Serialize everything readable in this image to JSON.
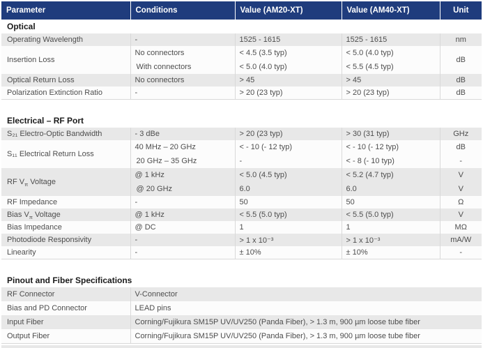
{
  "colors": {
    "header_bg": "#1f3c7d",
    "header_text": "#ffffff",
    "row_alt_bg": "#e8e8e8",
    "row_plain_bg": "#fcfcfc",
    "border": "#d9d9d9",
    "text": "#4d4d4d",
    "section_title_text": "#1a1a1a"
  },
  "table": {
    "columns": [
      {
        "label": "Parameter"
      },
      {
        "label": "Conditions"
      },
      {
        "label": "Value (AM20-XT)"
      },
      {
        "label": "Value (AM40-XT)"
      },
      {
        "label": "Unit"
      }
    ],
    "sections": [
      {
        "title": "Optical",
        "rows": [
          {
            "parameter": "Operating Wavelength",
            "lines": [
              {
                "condition": "-",
                "am20": "1525 - 1615",
                "am40": "1525 - 1615",
                "unit": "nm"
              }
            ]
          },
          {
            "parameter": "Insertion Loss",
            "unit": "dB",
            "lines": [
              {
                "condition": "No connectors",
                "am20": "< 4.5 (3.5 typ)",
                "am40": "< 5.0 (4.0 typ)"
              },
              {
                "condition": "With connectors",
                "am20": "< 5.0 (4.0 typ)",
                "am40": "< 5.5 (4.5 typ)"
              }
            ]
          },
          {
            "parameter": "Optical Return Loss",
            "lines": [
              {
                "condition": "No connectors",
                "am20": "> 45",
                "am40": "> 45",
                "unit": "dB"
              }
            ]
          },
          {
            "parameter": "Polarization Extinction Ratio",
            "lines": [
              {
                "condition": "-",
                "am20": "> 20 (23 typ)",
                "am40": "> 20 (23 typ)",
                "unit": "dB"
              }
            ]
          }
        ]
      },
      {
        "title": "Electrical – RF Port",
        "rows": [
          {
            "parameter": "S₂₁ Electro-Optic Bandwidth",
            "lines": [
              {
                "condition": "- 3 dBe",
                "am20": "> 20 (23 typ)",
                "am40": "> 30 (31 typ)",
                "unit": "GHz"
              }
            ]
          },
          {
            "parameter": "S₁₁ Electrical Return Loss",
            "lines": [
              {
                "condition": "40 MHz – 20 GHz",
                "am20": "< - 10 (- 12 typ)",
                "am40": "< - 10 (- 12 typ)",
                "unit": "dB"
              },
              {
                "condition": "20 GHz – 35 GHz",
                "am20": "-",
                "am40": "< - 8 (- 10 typ)",
                "unit": "-"
              }
            ]
          },
          {
            "parameter": "RF V~π~ Voltage",
            "lines": [
              {
                "condition": "@ 1 kHz",
                "am20": "< 5.0 (4.5 typ)",
                "am40": "< 5.2 (4.7 typ)",
                "unit": "V"
              },
              {
                "condition": "@ 20 GHz",
                "am20": "6.0",
                "am40": "6.0",
                "unit": "V"
              }
            ]
          },
          {
            "parameter": "RF Impedance",
            "lines": [
              {
                "condition": "-",
                "am20": "50",
                "am40": "50",
                "unit": "Ω"
              }
            ]
          },
          {
            "parameter": "Bias V~π~ Voltage",
            "lines": [
              {
                "condition": "@ 1 kHz",
                "am20": "< 5.5 (5.0 typ)",
                "am40": "< 5.5 (5.0 typ)",
                "unit": "V"
              }
            ]
          },
          {
            "parameter": "Bias Impedance",
            "lines": [
              {
                "condition": "@ DC",
                "am20": "1",
                "am40": "1",
                "unit": "MΩ"
              }
            ]
          },
          {
            "parameter": "Photodiode Responsivity",
            "lines": [
              {
                "condition": "-",
                "am20": "> 1 x 10⁻³",
                "am40": "> 1 x 10⁻³",
                "unit": "mA/W"
              }
            ]
          },
          {
            "parameter": "Linearity",
            "lines": [
              {
                "condition": "-",
                "am20": "± 10%",
                "am40": "± 10%",
                "unit": "-"
              }
            ]
          }
        ]
      },
      {
        "title": "Pinout and Fiber Specifications",
        "rows": [
          {
            "parameter": "RF Connector",
            "value": "V-Connector"
          },
          {
            "parameter": "Bias and PD Connector",
            "value": "LEAD pins"
          },
          {
            "parameter": "Input Fiber",
            "value": "Corning/Fujikura SM15P UV/UV250 (Panda Fiber), > 1.3 m, 900 µm loose tube fiber"
          },
          {
            "parameter": "Output Fiber",
            "value": "Corning/Fujikura SM15P UV/UV250 (Panda Fiber), > 1.3 m, 900 µm loose tube fiber"
          }
        ]
      }
    ]
  }
}
